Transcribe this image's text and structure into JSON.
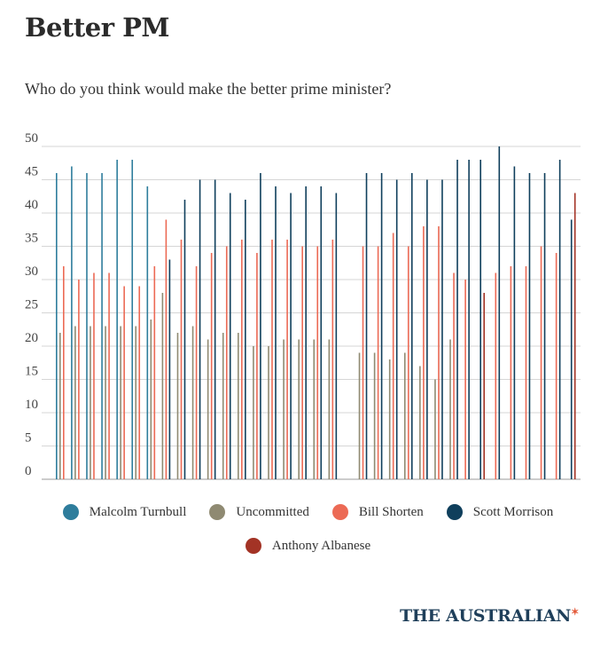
{
  "header": {
    "title": "Better PM",
    "subtitle": "Who do you think would make the better prime minister?"
  },
  "brand": {
    "name": "THE AUSTRALIAN"
  },
  "colors": {
    "Malcolm Turnbull": "#2e7d9c",
    "Uncommitted": "#8f8a72",
    "Bill Shorten": "#ec6a55",
    "Scott Morrison": "#0f3f5c",
    "Anthony Albanese": "#a33325",
    "grid": "#d6d6d6",
    "axis": "#999999"
  },
  "chart_data": {
    "type": "bar",
    "ylim": [
      0,
      50
    ],
    "yticks": [
      0,
      5,
      10,
      15,
      20,
      25,
      30,
      35,
      40,
      45,
      50
    ],
    "grid": true,
    "legend_position": "bottom",
    "series": [
      {
        "name": "Malcolm Turnbull",
        "values": [
          46,
          47,
          46,
          46,
          48,
          48,
          44,
          null,
          null,
          null,
          null,
          null,
          null,
          null,
          null,
          null,
          null,
          null,
          null,
          null,
          null,
          null,
          null,
          null,
          null,
          null,
          null,
          null,
          null,
          null,
          null,
          null,
          null,
          null,
          null
        ]
      },
      {
        "name": "Uncommitted",
        "values": [
          22,
          23,
          23,
          23,
          23,
          23,
          24,
          28,
          22,
          23,
          21,
          22,
          22,
          20,
          20,
          21,
          21,
          21,
          21,
          null,
          19,
          19,
          18,
          19,
          17,
          15,
          21,
          null,
          null,
          null,
          null,
          null,
          null,
          null,
          null
        ]
      },
      {
        "name": "Bill Shorten",
        "values": [
          32,
          30,
          31,
          31,
          29,
          29,
          32,
          39,
          36,
          32,
          34,
          35,
          36,
          34,
          36,
          36,
          35,
          35,
          36,
          null,
          35,
          35,
          37,
          35,
          38,
          38,
          31,
          30,
          null,
          31,
          32,
          32,
          35,
          34,
          null
        ]
      },
      {
        "name": "Scott Morrison",
        "values": [
          null,
          null,
          null,
          null,
          null,
          null,
          null,
          33,
          42,
          45,
          45,
          43,
          42,
          46,
          44,
          43,
          44,
          44,
          43,
          null,
          46,
          46,
          45,
          46,
          45,
          45,
          48,
          48,
          48,
          50,
          47,
          46,
          46,
          48,
          39
        ]
      },
      {
        "name": "Anthony Albanese",
        "values": [
          null,
          null,
          null,
          null,
          null,
          null,
          null,
          null,
          null,
          null,
          null,
          null,
          null,
          null,
          null,
          null,
          null,
          null,
          null,
          null,
          null,
          null,
          null,
          null,
          null,
          null,
          null,
          null,
          28,
          null,
          null,
          null,
          null,
          null,
          43
        ]
      }
    ]
  }
}
